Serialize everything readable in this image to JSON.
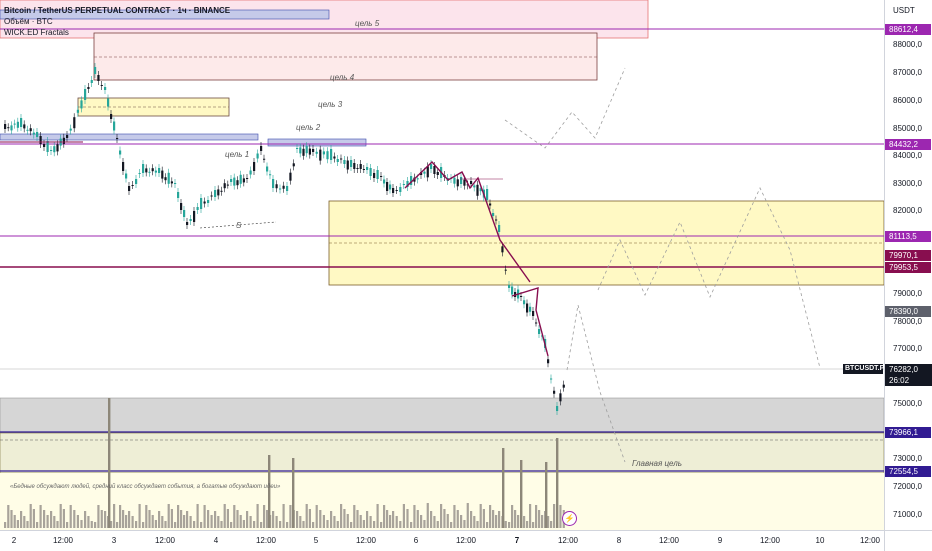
{
  "legend": {
    "title": "Bitcoin / TetherUS PERPETUAL CONTRACT · 1ч · BINANCE",
    "volume": "Объём · BTC",
    "indicator": "WICK.ED Fractals"
  },
  "price_axis": {
    "currency": "USDT",
    "ticks": [
      "88000,0",
      "87000,0",
      "86000,0",
      "85000,0",
      "84000,0",
      "83000,0",
      "82000,0",
      "79000,0",
      "78000,0",
      "77000,0",
      "75000,0",
      "73000,0",
      "72000,0",
      "71000,0"
    ],
    "flags": [
      {
        "value": "88612,4",
        "color": "#9c27b0"
      },
      {
        "value": "84432,2",
        "color": "#9c27b0"
      },
      {
        "value": "81113,5",
        "color": "#9c27b0"
      },
      {
        "value": "79970,1",
        "color": "#880e4f"
      },
      {
        "value": "79953,5",
        "color": "#880e4f"
      },
      {
        "value": "78390,0",
        "color": "#5d606b"
      },
      {
        "value": "73966,1",
        "color": "#311b92"
      },
      {
        "value": "72554,5",
        "color": "#311b92"
      }
    ],
    "current_price": "76282,0",
    "countdown": "26:02"
  },
  "symbol_tag": "BTCUSDT.P",
  "time_axis": {
    "ticks": [
      {
        "label": "2",
        "bold": false
      },
      {
        "label": "12:00",
        "bold": false
      },
      {
        "label": "3",
        "bold": false
      },
      {
        "label": "12:00",
        "bold": false
      },
      {
        "label": "4",
        "bold": false
      },
      {
        "label": "12:00",
        "bold": false
      },
      {
        "label": "5",
        "bold": false
      },
      {
        "label": "12:00",
        "bold": false
      },
      {
        "label": "6",
        "bold": false
      },
      {
        "label": "12:00",
        "bold": false
      },
      {
        "label": "7",
        "bold": true
      },
      {
        "label": "12:00",
        "bold": false
      },
      {
        "label": "8",
        "bold": false
      },
      {
        "label": "12:00",
        "bold": false
      },
      {
        "label": "9",
        "bold": false
      },
      {
        "label": "12:00",
        "bold": false
      },
      {
        "label": "10",
        "bold": false
      },
      {
        "label": "12:00",
        "bold": false
      }
    ]
  },
  "annotations": {
    "target1": "цель 1",
    "target2": "цель 2",
    "target3": "цель 3",
    "target4": "цель 4",
    "target5": "цель 5",
    "main_target": "Главная цель",
    "marker_s": "S",
    "quote": "«Бедные обсуждают людей, средний класс обсуждает события, а богатые обсуждают идеи»"
  },
  "colors": {
    "up": "#26a69a",
    "down": "#131722",
    "purple_line": "#9c27b0",
    "maroon_line": "#880e4f",
    "navy_line": "#311b92",
    "zone_pink": "#f8bbd0",
    "zone_yellow": "#fff9c4",
    "zone_gray": "#bdbdbd"
  }
}
